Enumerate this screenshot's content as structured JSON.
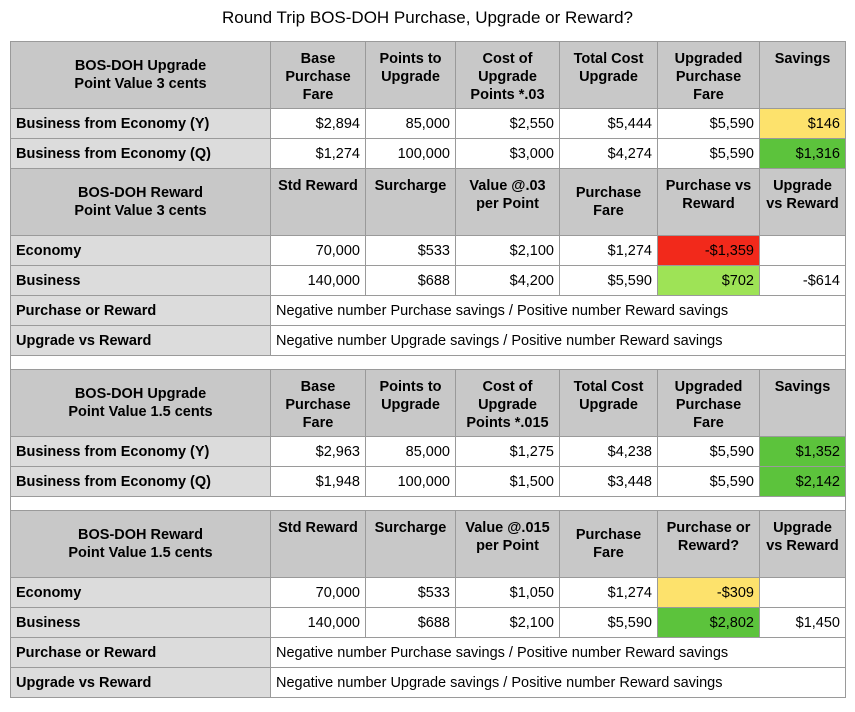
{
  "title": "Round Trip BOS-DOH Purchase, Upgrade or Reward?",
  "colors": {
    "yellow": "#fde26c",
    "green": "#5cc33c",
    "light_green": "#9ee356",
    "red": "#f2291b",
    "header_gray": "#c8c8c8"
  },
  "section1": {
    "title_line1": "BOS-DOH Upgrade",
    "title_line2": "Point Value 3 cents",
    "headers": [
      "Base Purchase Fare",
      "Points to Upgrade",
      "Cost of Upgrade Points *.03",
      "Total Cost Upgrade",
      "Upgraded Purchase Fare",
      "Savings"
    ],
    "rows": [
      {
        "label": "Business from Economy (Y)",
        "cells": [
          "$2,894",
          "85,000",
          "$2,550",
          "$5,444",
          "$5,590",
          "$146"
        ]
      },
      {
        "label": "Business from Economy (Q)",
        "cells": [
          "$1,274",
          "100,000",
          "$3,000",
          "$4,274",
          "$5,590",
          "$1,316"
        ]
      }
    ]
  },
  "section2": {
    "title_line1": "BOS-DOH Reward",
    "title_line2": "Point Value 3 cents",
    "headers": [
      "Std Reward",
      "Surcharge",
      "Value @.03 per Point",
      "Purchase Fare",
      "Purchase vs Reward",
      "Upgrade vs Reward"
    ],
    "rows": [
      {
        "label": "Economy",
        "cells": [
          "70,000",
          "$533",
          "$2,100",
          "$1,274",
          "-$1,359",
          ""
        ]
      },
      {
        "label": "Business",
        "cells": [
          "140,000",
          "$688",
          "$4,200",
          "$5,590",
          "$702",
          "-$614"
        ]
      }
    ],
    "notes": [
      {
        "label": "Purchase or Reward",
        "text": "Negative number Purchase savings / Positive number Reward savings"
      },
      {
        "label": "Upgrade vs Reward",
        "text": "Negative number Upgrade savings / Positive number Reward savings"
      }
    ]
  },
  "section3": {
    "title_line1": "BOS-DOH Upgrade",
    "title_line2": "Point Value 1.5 cents",
    "headers": [
      "Base Purchase Fare",
      "Points to Upgrade",
      "Cost of Upgrade Points *.015",
      "Total Cost Upgrade",
      "Upgraded Purchase Fare",
      "Savings"
    ],
    "rows": [
      {
        "label": "Business from Economy (Y)",
        "cells": [
          "$2,963",
          "85,000",
          "$1,275",
          "$4,238",
          "$5,590",
          "$1,352"
        ]
      },
      {
        "label": "Business from Economy (Q)",
        "cells": [
          "$1,948",
          "100,000",
          "$1,500",
          "$3,448",
          "$5,590",
          "$2,142"
        ]
      }
    ]
  },
  "section4": {
    "title_line1": "BOS-DOH Reward",
    "title_line2": "Point Value 1.5 cents",
    "headers": [
      "Std Reward",
      "Surcharge",
      "Value @.015 per Point",
      "Purchase Fare",
      "Purchase or Reward?",
      "Upgrade vs Reward"
    ],
    "rows": [
      {
        "label": "Economy",
        "cells": [
          "70,000",
          "$533",
          "$1,050",
          "$1,274",
          "-$309",
          ""
        ]
      },
      {
        "label": "Business",
        "cells": [
          "140,000",
          "$688",
          "$2,100",
          "$5,590",
          "$2,802",
          "$1,450"
        ]
      }
    ],
    "notes": [
      {
        "label": "Purchase or Reward",
        "text": "Negative number Purchase savings / Positive number Reward savings"
      },
      {
        "label": "Upgrade vs Reward",
        "text": "Negative number Upgrade savings / Positive number Reward savings"
      }
    ]
  }
}
